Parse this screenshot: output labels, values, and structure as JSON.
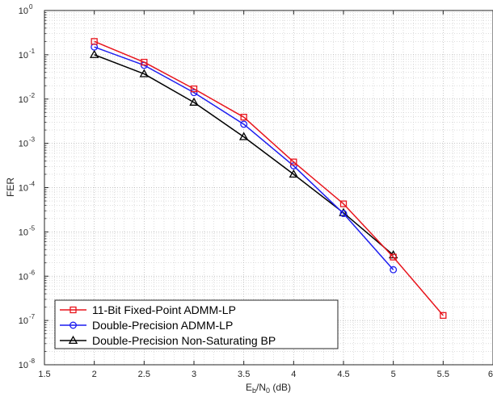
{
  "chart_data": {
    "type": "line",
    "title": "",
    "xlabel": "E",
    "xlabel_sub1": "b",
    "xlabel_mid": "/N",
    "xlabel_sub2": "0",
    "xlabel_suffix": " (dB)",
    "ylabel": "FER",
    "xlim": [
      1.5,
      6
    ],
    "ylim": [
      1e-08,
      1
    ],
    "yscale": "log",
    "grid": true,
    "minor_grid": true,
    "legend_position": "bottom-left",
    "x_ticks": [
      1.5,
      2,
      2.5,
      3,
      3.5,
      4,
      4.5,
      5,
      5.5,
      6
    ],
    "x_tick_labels": [
      "1.5",
      "2",
      "2.5",
      "3",
      "3.5",
      "4",
      "4.5",
      "5",
      "5.5",
      "6"
    ],
    "y_ticks": [
      {
        "value": 1e-08,
        "base": "10",
        "exp": "-8"
      },
      {
        "value": 1e-07,
        "base": "10",
        "exp": "-7"
      },
      {
        "value": 1e-06,
        "base": "10",
        "exp": "-6"
      },
      {
        "value": 1e-05,
        "base": "10",
        "exp": "-5"
      },
      {
        "value": 0.0001,
        "base": "10",
        "exp": "-4"
      },
      {
        "value": 0.001,
        "base": "10",
        "exp": "-3"
      },
      {
        "value": 0.01,
        "base": "10",
        "exp": "-2"
      },
      {
        "value": 0.1,
        "base": "10",
        "exp": "-1"
      },
      {
        "value": 1,
        "base": "10",
        "exp": "0"
      }
    ],
    "series": [
      {
        "name": "11-Bit Fixed-Point ADMM-LP",
        "color": "#e8141c",
        "marker": "square",
        "x": [
          2,
          2.5,
          3,
          3.5,
          4,
          4.5,
          5,
          5.5
        ],
        "y": [
          0.2,
          0.068,
          0.017,
          0.0039,
          0.00038,
          4.3e-05,
          2.7e-06,
          1.3e-07
        ]
      },
      {
        "name": "Double-Precision ADMM-LP",
        "color": "#1c1cf0",
        "marker": "circle",
        "x": [
          2,
          2.5,
          3,
          3.5,
          4,
          4.5,
          5
        ],
        "y": [
          0.15,
          0.058,
          0.014,
          0.0027,
          0.00031,
          2.6e-05,
          1.4e-06
        ]
      },
      {
        "name": "Double-Precision Non-Saturating BP",
        "color": "#000000",
        "marker": "triangle",
        "x": [
          2,
          2.5,
          3,
          3.5,
          4,
          4.5,
          5
        ],
        "y": [
          0.1,
          0.037,
          0.0084,
          0.0014,
          0.0002,
          2.7e-05,
          3e-06
        ]
      }
    ]
  }
}
